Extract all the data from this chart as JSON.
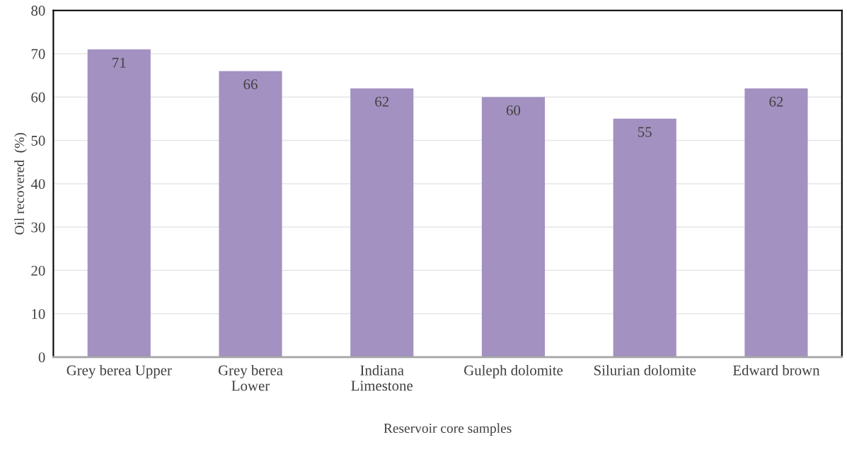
{
  "chart_data": {
    "type": "bar",
    "xlabel": "Reservoir core samples",
    "ylabel": "Oil recovered  (%)",
    "categories": [
      "Grey berea Upper",
      "Grey berea\nLower",
      "Indiana\nLimestone",
      "Guleph dolomite",
      "Silurian dolomite",
      "Edward brown"
    ],
    "values": [
      71,
      66,
      62,
      60,
      55,
      62
    ],
    "color": "#a391c1",
    "ylim": [
      0,
      80
    ],
    "yticks": [
      0,
      10,
      20,
      30,
      40,
      50,
      60,
      70,
      80
    ],
    "grid": "y",
    "data_labels": true
  }
}
